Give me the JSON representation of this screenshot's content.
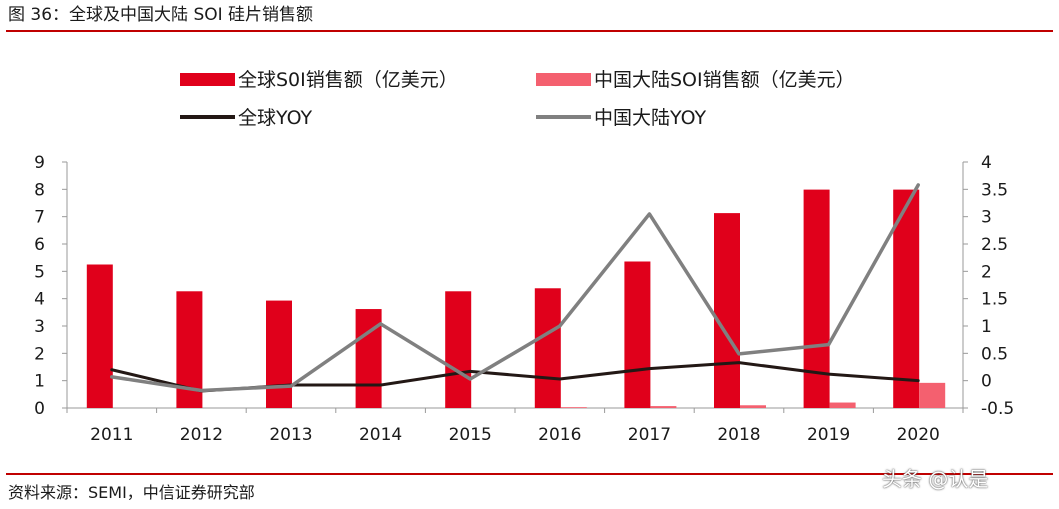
{
  "figure": {
    "title": "图 36：全球及中国大陆 SOI 硅片销售额",
    "source": "资料来源：SEMI，中信证券研究部",
    "watermark": "头条 @认是"
  },
  "colors": {
    "rule": "#c00000",
    "global_bar": "#e0001b",
    "china_bar": "#f4606f",
    "global_yoy": "#231815",
    "china_yoy": "#808080",
    "axis": "#9a9a9a"
  },
  "chart_data": {
    "type": "bar",
    "categories": [
      "2011",
      "2012",
      "2013",
      "2014",
      "2015",
      "2016",
      "2017",
      "2018",
      "2019",
      "2020"
    ],
    "legend_position": "top",
    "grid": false,
    "y_left": {
      "ticks": [
        "0",
        "1",
        "2",
        "3",
        "4",
        "5",
        "6",
        "7",
        "8",
        "9"
      ],
      "ylim": [
        0,
        9
      ]
    },
    "y_right": {
      "ticks": [
        "-0.5",
        "0",
        "0.5",
        "1",
        "1.5",
        "2",
        "2.5",
        "3",
        "3.5",
        "4"
      ],
      "ylim": [
        -0.5,
        4
      ]
    },
    "series": [
      {
        "name": "全球S0I销售额（亿美元）",
        "kind": "bar",
        "axis": "left",
        "color": "#e0001b",
        "values": [
          5.25,
          4.27,
          3.93,
          3.62,
          4.27,
          4.38,
          5.36,
          7.13,
          7.99,
          7.99
        ]
      },
      {
        "name": "中国大陆SOI销售额（亿美元）",
        "kind": "bar",
        "axis": "left",
        "color": "#f4606f",
        "values": [
          0.0,
          0.0,
          0.0,
          0.0,
          0.0,
          0.03,
          0.07,
          0.1,
          0.2,
          0.92
        ]
      },
      {
        "name": "全球YOY",
        "kind": "line",
        "axis": "right",
        "color": "#231815",
        "values": [
          0.2,
          -0.19,
          -0.08,
          -0.08,
          0.17,
          0.03,
          0.22,
          0.33,
          0.12,
          0.0
        ]
      },
      {
        "name": "中国大陆YOY",
        "kind": "line",
        "axis": "right",
        "color": "#808080",
        "values": [
          0.07,
          -0.18,
          -0.1,
          1.04,
          0.03,
          1.0,
          3.05,
          0.49,
          0.66,
          3.58
        ]
      }
    ]
  }
}
